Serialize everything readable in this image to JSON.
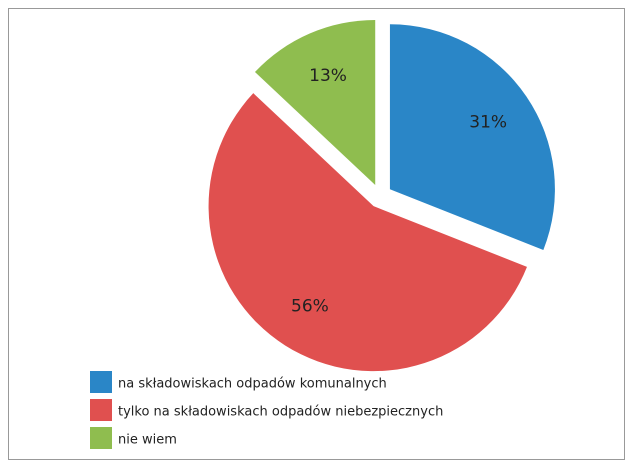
{
  "chart_data": {
    "type": "pie",
    "categories": [
      "na składowiskach odpadów komunalnych",
      "tylko na składowiskach odpadów niebezpiecznych",
      "nie wiem"
    ],
    "values": [
      31,
      56,
      13
    ],
    "value_labels": [
      "31%",
      "56%",
      "13%"
    ],
    "colors": [
      "#2a86c7",
      "#e0504f",
      "#8fbd4f"
    ],
    "legend": "bottom-left"
  }
}
